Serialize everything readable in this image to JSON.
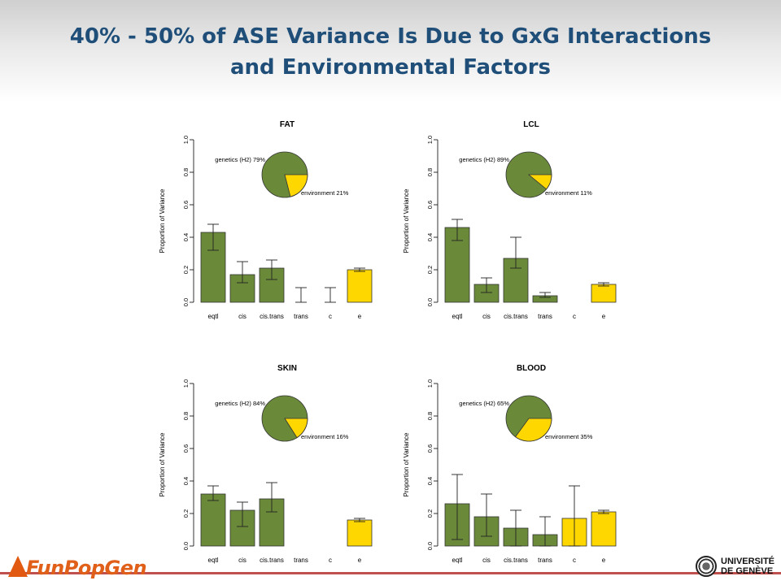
{
  "slide": {
    "title_line1": "40% - 50% of ASE Variance Is Due to GxG Interactions",
    "title_line2": "and Environmental Factors"
  },
  "logos": {
    "left": "FunPopGen",
    "right_line1": "UNIVERSITÉ",
    "right_line2": "DE GENÈVE"
  },
  "colors": {
    "genetics": "#6a8a3a",
    "environment": "#ffd700",
    "title": "#1f4e79",
    "footer_line": "#c0504d"
  },
  "chart_data": [
    {
      "type": "bar",
      "title": "FAT",
      "ylabel": "Proportion of Variance",
      "ylim": [
        0,
        1
      ],
      "yticks": [
        "0.0",
        "0.2",
        "0.4",
        "0.6",
        "0.8",
        "1.0"
      ],
      "categories": [
        "eqtl",
        "cis",
        "cis.trans",
        "trans",
        "c",
        "e"
      ],
      "values": [
        0.43,
        0.17,
        0.21,
        0.0,
        0.0,
        0.2
      ],
      "err_low": [
        0.32,
        0.12,
        0.14,
        0.0,
        0.0,
        0.19
      ],
      "err_high": [
        0.48,
        0.25,
        0.26,
        0.09,
        0.09,
        0.21
      ],
      "bar_colors": [
        "genetics",
        "genetics",
        "genetics",
        "genetics",
        "genetics",
        "environment"
      ],
      "pie": {
        "genetics": 79,
        "environment": 21,
        "genetics_label": "genetics (H2) 79%",
        "environment_label": "environment 21%"
      }
    },
    {
      "type": "bar",
      "title": "LCL",
      "ylabel": "Proportion of Variance",
      "ylim": [
        0,
        1
      ],
      "yticks": [
        "0.0",
        "0.2",
        "0.4",
        "0.6",
        "0.8",
        "1.0"
      ],
      "categories": [
        "eqtl",
        "cis",
        "cis.trans",
        "trans",
        "c",
        "e"
      ],
      "values": [
        0.46,
        0.11,
        0.27,
        0.04,
        0.0,
        0.11
      ],
      "err_low": [
        0.38,
        0.06,
        0.21,
        0.03,
        0.0,
        0.1
      ],
      "err_high": [
        0.51,
        0.15,
        0.4,
        0.06,
        0.0,
        0.12
      ],
      "bar_colors": [
        "genetics",
        "genetics",
        "genetics",
        "genetics",
        "genetics",
        "environment"
      ],
      "pie": {
        "genetics": 89,
        "environment": 11,
        "genetics_label": "genetics (H2) 89%",
        "environment_label": "environment 11%"
      }
    },
    {
      "type": "bar",
      "title": "SKIN",
      "ylabel": "Proportion of Variance",
      "ylim": [
        0,
        1
      ],
      "yticks": [
        "0.0",
        "0.2",
        "0.4",
        "0.6",
        "0.8",
        "1.0"
      ],
      "categories": [
        "eqtl",
        "cis",
        "cis.trans",
        "trans",
        "c",
        "e"
      ],
      "values": [
        0.32,
        0.22,
        0.29,
        0.0,
        0.0,
        0.16
      ],
      "err_low": [
        0.28,
        0.12,
        0.21,
        0.0,
        0.0,
        0.15
      ],
      "err_high": [
        0.37,
        0.27,
        0.39,
        0.0,
        0.0,
        0.17
      ],
      "bar_colors": [
        "genetics",
        "genetics",
        "genetics",
        "genetics",
        "genetics",
        "environment"
      ],
      "pie": {
        "genetics": 84,
        "environment": 16,
        "genetics_label": "genetics (H2) 84%",
        "environment_label": "environment 16%"
      }
    },
    {
      "type": "bar",
      "title": "BLOOD",
      "ylabel": "Proportion of Variance",
      "ylim": [
        0,
        1
      ],
      "yticks": [
        "0.0",
        "0.2",
        "0.4",
        "0.6",
        "0.8",
        "1.0"
      ],
      "categories": [
        "eqtl",
        "cis",
        "cis.trans",
        "trans",
        "c",
        "e"
      ],
      "values": [
        0.26,
        0.18,
        0.11,
        0.07,
        0.17,
        0.21
      ],
      "err_low": [
        0.04,
        0.06,
        0.0,
        0.0,
        0.0,
        0.2
      ],
      "err_high": [
        0.44,
        0.32,
        0.22,
        0.18,
        0.37,
        0.22
      ],
      "bar_colors": [
        "genetics",
        "genetics",
        "genetics",
        "genetics",
        "environment",
        "environment"
      ],
      "pie": {
        "genetics": 65,
        "environment": 35,
        "genetics_label": "genetics (H2) 65%",
        "environment_label": "environment 35%"
      }
    }
  ]
}
